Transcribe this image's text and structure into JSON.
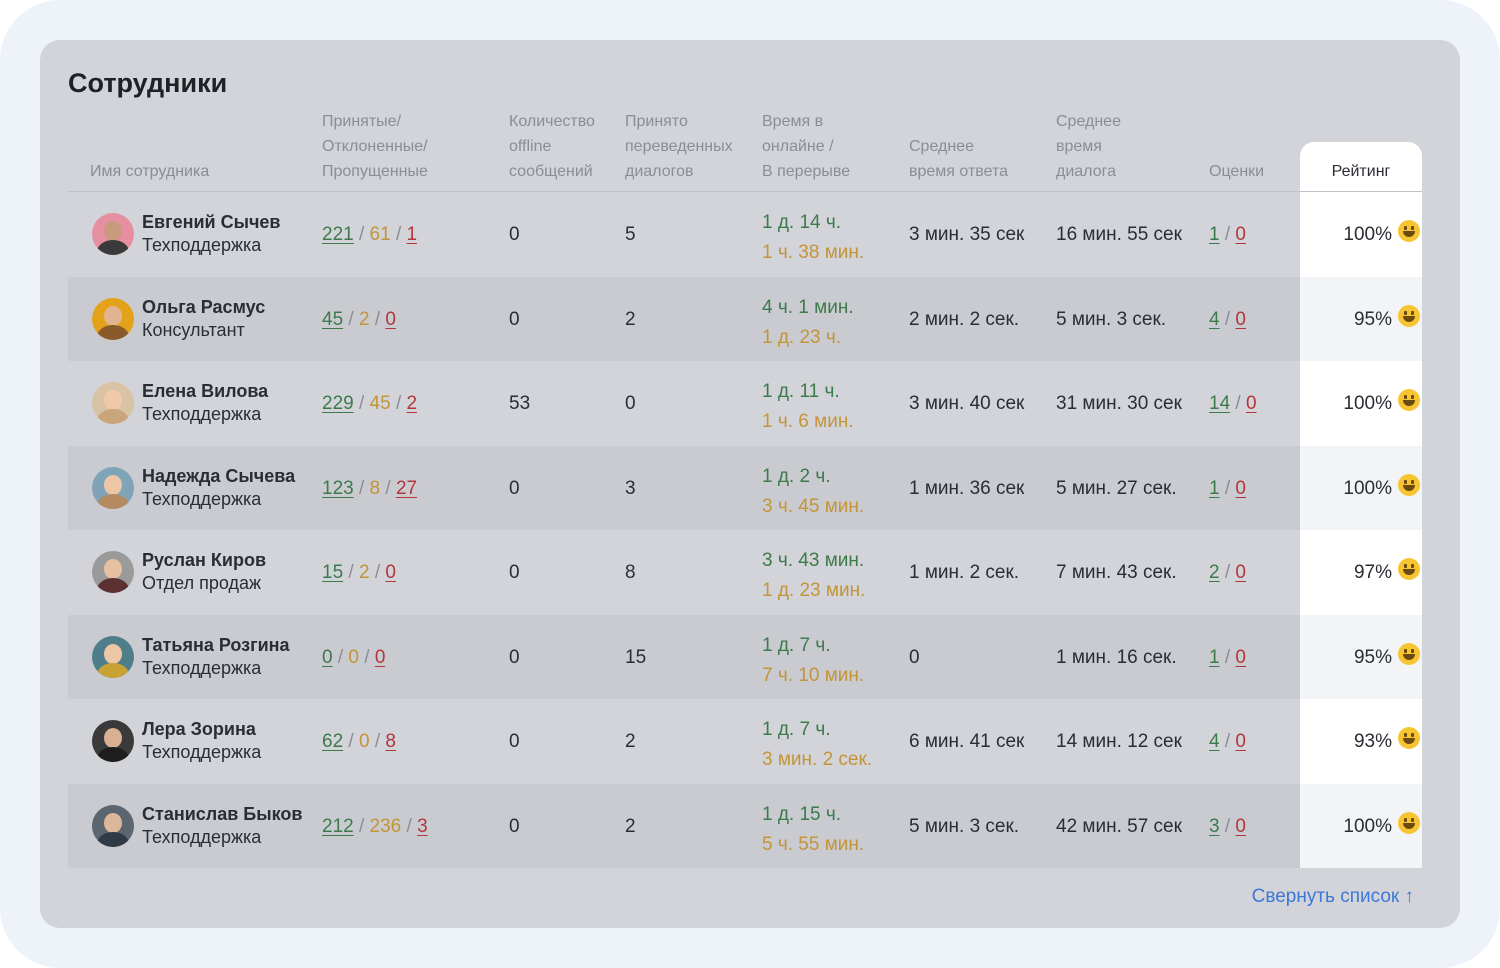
{
  "title": "Сотрудники",
  "headers": {
    "name": "Имя сотрудника",
    "accepted": [
      "Принятые/",
      "Отклоненные/",
      "Пропущенные"
    ],
    "offline": [
      "Количество",
      "offline",
      "сообщений"
    ],
    "transferred": [
      "Принято",
      "переведенных",
      "диалогов"
    ],
    "online": [
      "Время в",
      "онлайне /",
      "В перерыве"
    ],
    "avg_response": [
      "Среднее",
      "время ответа"
    ],
    "avg_dialog": [
      "Среднее",
      "время",
      "диалога"
    ],
    "ratings": "Оценки",
    "rating": "Рейтинг"
  },
  "employees": [
    {
      "name": "Евгений Сычев",
      "dept": "Техподдержка",
      "accepted": "221",
      "rejected": "61",
      "missed": "1",
      "offline": "0",
      "transferred": "5",
      "online": "1 д. 14 ч.",
      "break": "1 ч. 38 мин.",
      "avg_response": "3 мин. 35 сек",
      "avg_dialog": "16 мин. 55 сек",
      "marks_pos": "1",
      "marks_neg": "0",
      "rating": "100%",
      "avatar": {
        "bg": "#e58fa0",
        "skin": "#c99a7e",
        "cloth": "#3a3a3a"
      }
    },
    {
      "name": "Ольга Расмус",
      "dept": "Консультант",
      "accepted": "45",
      "rejected": "2",
      "missed": "0",
      "offline": "0",
      "transferred": "2",
      "online": "4 ч. 1 мин.",
      "break": "1 д. 23 ч.",
      "avg_response": "2 мин. 2 сек.",
      "avg_dialog": "5 мин. 3 сек.",
      "marks_pos": "4",
      "marks_neg": "0",
      "rating": "95%",
      "avatar": {
        "bg": "#e3a21a",
        "skin": "#e2b591",
        "cloth": "#8a5a2a"
      }
    },
    {
      "name": "Елена Вилова",
      "dept": "Техподдержка",
      "accepted": "229",
      "rejected": "45",
      "missed": "2",
      "offline": "53",
      "transferred": "0",
      "online": "1 д. 11 ч.",
      "break": "1 ч. 6 мин.",
      "avg_response": "3 мин. 40 сек",
      "avg_dialog": "31 мин. 30 сек",
      "marks_pos": "14",
      "marks_neg": "0",
      "rating": "100%",
      "avatar": {
        "bg": "#d9c3a5",
        "skin": "#f0c9a8",
        "cloth": "#c9a57a"
      }
    },
    {
      "name": "Надежда Сычева",
      "dept": "Техподдержка",
      "accepted": "123",
      "rejected": "8",
      "missed": "27",
      "offline": "0",
      "transferred": "3",
      "online": "1 д. 2 ч.",
      "break": "3 ч. 45 мин.",
      "avg_response": "1 мин. 36 сек",
      "avg_dialog": "5 мин. 27 сек.",
      "marks_pos": "1",
      "marks_neg": "0",
      "rating": "100%",
      "avatar": {
        "bg": "#7fa4b8",
        "skin": "#edc6a6",
        "cloth": "#b58a60"
      }
    },
    {
      "name": "Руслан Киров",
      "dept": "Отдел продаж",
      "accepted": "15",
      "rejected": "2",
      "missed": "0",
      "offline": "0",
      "transferred": "8",
      "online": "3 ч. 43 мин.",
      "break": "1 д. 23 мин.",
      "avg_response": "1 мин. 2 сек.",
      "avg_dialog": "7 мин. 43 сек.",
      "marks_pos": "2",
      "marks_neg": "0",
      "rating": "97%",
      "avatar": {
        "bg": "#9a9a9a",
        "skin": "#e6c0a0",
        "cloth": "#5a3030"
      }
    },
    {
      "name": "Татьяна Розгина",
      "dept": "Техподдержка",
      "accepted": "0",
      "rejected": "0",
      "missed": "0",
      "offline": "0",
      "transferred": "15",
      "online": "1 д. 7 ч.",
      "break": "7 ч. 10 мин.",
      "avg_response": "0",
      "avg_dialog": "1 мин. 16 сек.",
      "marks_pos": "1",
      "marks_neg": "0",
      "rating": "95%",
      "avatar": {
        "bg": "#4e7e8a",
        "skin": "#ecc7a5",
        "cloth": "#c9a236"
      }
    },
    {
      "name": "Лера Зорина",
      "dept": "Техподдержка",
      "accepted": "62",
      "rejected": "0",
      "missed": "8",
      "offline": "0",
      "transferred": "2",
      "online": "1 д. 7 ч.",
      "break": "3 мин. 2 сек.",
      "avg_response": "6 мин. 41 сек",
      "avg_dialog": "14 мин. 12 сек",
      "marks_pos": "4",
      "marks_neg": "0",
      "rating": "93%",
      "avatar": {
        "bg": "#3a3a3a",
        "skin": "#d9b094",
        "cloth": "#1e1e1e"
      }
    },
    {
      "name": "Станислав Быков",
      "dept": "Техподдержка",
      "accepted": "212",
      "rejected": "236",
      "missed": "3",
      "offline": "0",
      "transferred": "2",
      "online": "1 д. 15 ч.",
      "break": "5 ч. 55 мин.",
      "avg_response": "5 мин. 3 сек.",
      "avg_dialog": "42 мин. 57 сек",
      "marks_pos": "3",
      "marks_neg": "0",
      "rating": "100%",
      "avatar": {
        "bg": "#5c6670",
        "skin": "#dcb79a",
        "cloth": "#2f3a45"
      }
    }
  ],
  "collapse_label": "Свернуть список ↑",
  "colors": {
    "accepted": "#3d7a4a",
    "rejected": "#c39438",
    "missed": "#b3363a",
    "link": "#3d78d6"
  }
}
